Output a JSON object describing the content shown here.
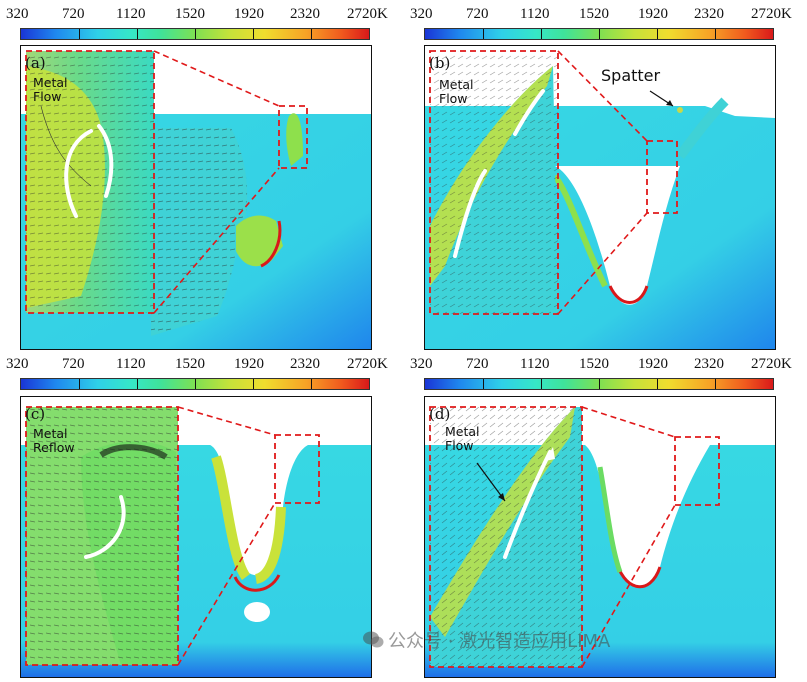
{
  "colorbar": {
    "ticks": [
      "320",
      "720",
      "1120",
      "1520",
      "1920",
      "2320",
      "2720K"
    ]
  },
  "panels": [
    {
      "id": "a",
      "label": "(a)",
      "annotation_lines": [
        "Metal",
        "Flow"
      ]
    },
    {
      "id": "b",
      "label": "(b)",
      "annotation_lines": [
        "Metal",
        "Flow"
      ],
      "extra": "Spatter"
    },
    {
      "id": "c",
      "label": "(c)",
      "annotation_lines": [
        "Metal",
        "Reflow"
      ]
    },
    {
      "id": "d",
      "label": "(d)",
      "annotation_lines": [
        "Metal",
        "Flow"
      ]
    }
  ],
  "watermark": "公众号 · 激光智造应用LIMA",
  "colors": {
    "cold": "#1a35d6",
    "substrate": "#3ed7e6",
    "hot": "#d9191a",
    "zoom_box": "#e0191a"
  }
}
